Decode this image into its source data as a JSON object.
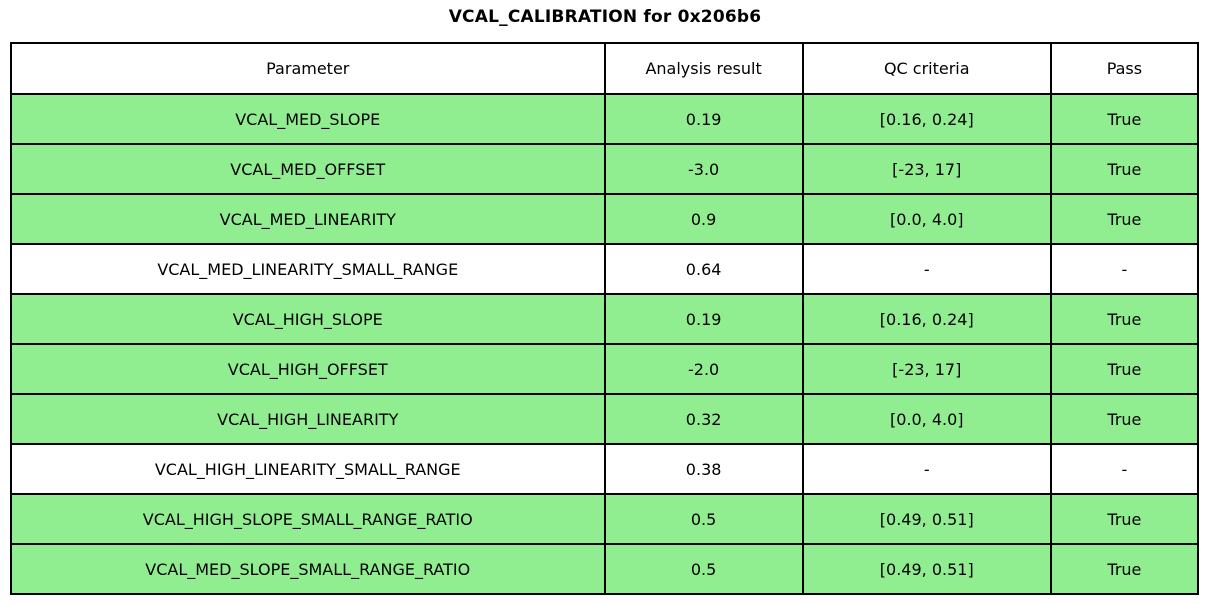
{
  "title": "VCAL_CALIBRATION for 0x206b6",
  "colors": {
    "highlight_row_bg": "#90EE90",
    "default_row_bg": "#FFFFFF",
    "border": "#000000",
    "text": "#000000"
  },
  "chart_data": {
    "type": "table",
    "title": "VCAL_CALIBRATION for 0x206b6",
    "columns": [
      "Parameter",
      "Analysis result",
      "QC criteria",
      "Pass"
    ],
    "column_width_percent": [
      50.0,
      16.7,
      20.9,
      12.4
    ],
    "highlight_color": "#90EE90",
    "rows": [
      {
        "parameter": "VCAL_MED_SLOPE",
        "analysis_result": "0.19",
        "qc_criteria": "[0.16, 0.24]",
        "pass": "True",
        "highlighted": true
      },
      {
        "parameter": "VCAL_MED_OFFSET",
        "analysis_result": "-3.0",
        "qc_criteria": "[-23, 17]",
        "pass": "True",
        "highlighted": true
      },
      {
        "parameter": "VCAL_MED_LINEARITY",
        "analysis_result": "0.9",
        "qc_criteria": "[0.0, 4.0]",
        "pass": "True",
        "highlighted": true
      },
      {
        "parameter": "VCAL_MED_LINEARITY_SMALL_RANGE",
        "analysis_result": "0.64",
        "qc_criteria": "-",
        "pass": "-",
        "highlighted": false
      },
      {
        "parameter": "VCAL_HIGH_SLOPE",
        "analysis_result": "0.19",
        "qc_criteria": "[0.16, 0.24]",
        "pass": "True",
        "highlighted": true
      },
      {
        "parameter": "VCAL_HIGH_OFFSET",
        "analysis_result": "-2.0",
        "qc_criteria": "[-23, 17]",
        "pass": "True",
        "highlighted": true
      },
      {
        "parameter": "VCAL_HIGH_LINEARITY",
        "analysis_result": "0.32",
        "qc_criteria": "[0.0, 4.0]",
        "pass": "True",
        "highlighted": true
      },
      {
        "parameter": "VCAL_HIGH_LINEARITY_SMALL_RANGE",
        "analysis_result": "0.38",
        "qc_criteria": "-",
        "pass": "-",
        "highlighted": false
      },
      {
        "parameter": "VCAL_HIGH_SLOPE_SMALL_RANGE_RATIO",
        "analysis_result": "0.5",
        "qc_criteria": "[0.49, 0.51]",
        "pass": "True",
        "highlighted": true
      },
      {
        "parameter": "VCAL_MED_SLOPE_SMALL_RANGE_RATIO",
        "analysis_result": "0.5",
        "qc_criteria": "[0.49, 0.51]",
        "pass": "True",
        "highlighted": true
      }
    ]
  }
}
